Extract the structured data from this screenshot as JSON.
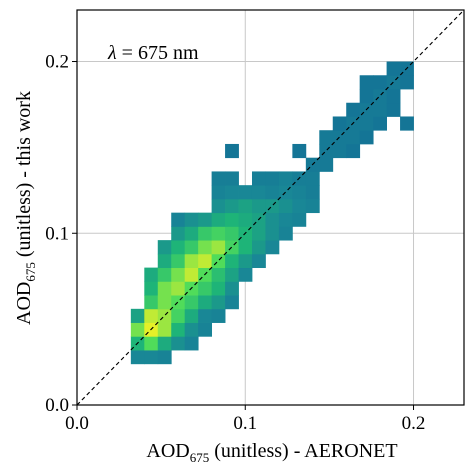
{
  "chart_data": {
    "type": "heatmap",
    "title": "",
    "annotation": {
      "symbol": "λ",
      "text": " = 675 nm"
    },
    "xlabel": {
      "prefix": "AOD",
      "sub": "675",
      "suffix": " (unitless) - AERONET"
    },
    "ylabel": {
      "prefix": "AOD",
      "sub": "675",
      "suffix": " (unitless) - this work"
    },
    "xlim": [
      0,
      0.23
    ],
    "ylim": [
      0,
      0.23
    ],
    "xticks": [
      0,
      0.1,
      0.2
    ],
    "yticks": [
      0,
      0.1,
      0.2
    ],
    "xtick_labels": [
      "0.0",
      "0.1",
      "0.2"
    ],
    "ytick_labels": [
      "0.0",
      "0.1",
      "0.2"
    ],
    "grid": true,
    "reference_line": "1:1 dashed",
    "colormap": "viridis-like (blue-green to yellow)",
    "bin_width": 0.008,
    "cells": [
      [
        0.032,
        0.024,
        0.35
      ],
      [
        0.04,
        0.024,
        0.35
      ],
      [
        0.048,
        0.024,
        0.3
      ],
      [
        0.032,
        0.032,
        0.6
      ],
      [
        0.04,
        0.032,
        0.8
      ],
      [
        0.048,
        0.032,
        0.55
      ],
      [
        0.056,
        0.032,
        0.4
      ],
      [
        0.064,
        0.032,
        0.3
      ],
      [
        0.032,
        0.04,
        0.85
      ],
      [
        0.04,
        0.04,
        1.0
      ],
      [
        0.048,
        0.04,
        0.9
      ],
      [
        0.056,
        0.04,
        0.6
      ],
      [
        0.064,
        0.04,
        0.4
      ],
      [
        0.072,
        0.04,
        0.3
      ],
      [
        0.032,
        0.048,
        0.5
      ],
      [
        0.04,
        0.048,
        0.95
      ],
      [
        0.048,
        0.048,
        0.9
      ],
      [
        0.056,
        0.048,
        0.75
      ],
      [
        0.064,
        0.048,
        0.55
      ],
      [
        0.072,
        0.048,
        0.35
      ],
      [
        0.08,
        0.048,
        0.3
      ],
      [
        0.04,
        0.056,
        0.7
      ],
      [
        0.048,
        0.056,
        0.85
      ],
      [
        0.056,
        0.056,
        0.8
      ],
      [
        0.064,
        0.056,
        0.7
      ],
      [
        0.072,
        0.056,
        0.55
      ],
      [
        0.08,
        0.056,
        0.45
      ],
      [
        0.088,
        0.056,
        0.3
      ],
      [
        0.04,
        0.064,
        0.6
      ],
      [
        0.048,
        0.064,
        0.85
      ],
      [
        0.056,
        0.064,
        0.9
      ],
      [
        0.064,
        0.064,
        0.8
      ],
      [
        0.072,
        0.064,
        0.7
      ],
      [
        0.08,
        0.064,
        0.6
      ],
      [
        0.088,
        0.064,
        0.4
      ],
      [
        0.04,
        0.072,
        0.55
      ],
      [
        0.048,
        0.072,
        0.7
      ],
      [
        0.056,
        0.072,
        0.85
      ],
      [
        0.064,
        0.072,
        0.95
      ],
      [
        0.072,
        0.072,
        0.8
      ],
      [
        0.08,
        0.072,
        0.65
      ],
      [
        0.088,
        0.072,
        0.5
      ],
      [
        0.096,
        0.072,
        0.35
      ],
      [
        0.048,
        0.08,
        0.55
      ],
      [
        0.056,
        0.08,
        0.7
      ],
      [
        0.064,
        0.08,
        0.9
      ],
      [
        0.072,
        0.08,
        0.95
      ],
      [
        0.08,
        0.08,
        0.8
      ],
      [
        0.088,
        0.08,
        0.6
      ],
      [
        0.096,
        0.08,
        0.45
      ],
      [
        0.104,
        0.08,
        0.35
      ],
      [
        0.048,
        0.088,
        0.45
      ],
      [
        0.056,
        0.088,
        0.6
      ],
      [
        0.064,
        0.088,
        0.7
      ],
      [
        0.072,
        0.088,
        0.85
      ],
      [
        0.08,
        0.088,
        0.9
      ],
      [
        0.088,
        0.088,
        0.75
      ],
      [
        0.096,
        0.088,
        0.6
      ],
      [
        0.104,
        0.088,
        0.45
      ],
      [
        0.112,
        0.088,
        0.35
      ],
      [
        0.056,
        0.096,
        0.45
      ],
      [
        0.064,
        0.096,
        0.55
      ],
      [
        0.072,
        0.096,
        0.7
      ],
      [
        0.08,
        0.096,
        0.75
      ],
      [
        0.088,
        0.096,
        0.7
      ],
      [
        0.096,
        0.096,
        0.6
      ],
      [
        0.104,
        0.096,
        0.5
      ],
      [
        0.112,
        0.096,
        0.4
      ],
      [
        0.12,
        0.096,
        0.3
      ],
      [
        0.056,
        0.104,
        0.3
      ],
      [
        0.064,
        0.104,
        0.4
      ],
      [
        0.072,
        0.104,
        0.45
      ],
      [
        0.08,
        0.104,
        0.55
      ],
      [
        0.088,
        0.104,
        0.6
      ],
      [
        0.096,
        0.104,
        0.55
      ],
      [
        0.104,
        0.104,
        0.5
      ],
      [
        0.112,
        0.104,
        0.4
      ],
      [
        0.12,
        0.104,
        0.35
      ],
      [
        0.128,
        0.104,
        0.3
      ],
      [
        0.08,
        0.112,
        0.4
      ],
      [
        0.088,
        0.112,
        0.45
      ],
      [
        0.096,
        0.112,
        0.5
      ],
      [
        0.104,
        0.112,
        0.45
      ],
      [
        0.112,
        0.112,
        0.45
      ],
      [
        0.12,
        0.112,
        0.4
      ],
      [
        0.128,
        0.112,
        0.35
      ],
      [
        0.136,
        0.112,
        0.3
      ],
      [
        0.08,
        0.12,
        0.3
      ],
      [
        0.088,
        0.12,
        0.35
      ],
      [
        0.096,
        0.12,
        0.35
      ],
      [
        0.104,
        0.12,
        0.35
      ],
      [
        0.112,
        0.12,
        0.3
      ],
      [
        0.12,
        0.12,
        0.35
      ],
      [
        0.128,
        0.12,
        0.3
      ],
      [
        0.136,
        0.12,
        0.25
      ],
      [
        0.08,
        0.128,
        0.25
      ],
      [
        0.088,
        0.128,
        0.25
      ],
      [
        0.104,
        0.128,
        0.25
      ],
      [
        0.112,
        0.128,
        0.25
      ],
      [
        0.12,
        0.128,
        0.3
      ],
      [
        0.128,
        0.128,
        0.25
      ],
      [
        0.136,
        0.128,
        0.25
      ],
      [
        0.136,
        0.136,
        0.2
      ],
      [
        0.144,
        0.136,
        0.2
      ],
      [
        0.088,
        0.144,
        0.15
      ],
      [
        0.128,
        0.144,
        0.15
      ],
      [
        0.144,
        0.144,
        0.2
      ],
      [
        0.152,
        0.144,
        0.2
      ],
      [
        0.16,
        0.144,
        0.15
      ],
      [
        0.144,
        0.152,
        0.2
      ],
      [
        0.152,
        0.152,
        0.2
      ],
      [
        0.16,
        0.152,
        0.2
      ],
      [
        0.168,
        0.152,
        0.15
      ],
      [
        0.152,
        0.16,
        0.15
      ],
      [
        0.16,
        0.16,
        0.2
      ],
      [
        0.168,
        0.16,
        0.2
      ],
      [
        0.176,
        0.16,
        0.15
      ],
      [
        0.192,
        0.16,
        0.15
      ],
      [
        0.16,
        0.168,
        0.15
      ],
      [
        0.168,
        0.168,
        0.2
      ],
      [
        0.176,
        0.168,
        0.2
      ],
      [
        0.184,
        0.168,
        0.15
      ],
      [
        0.168,
        0.176,
        0.15
      ],
      [
        0.176,
        0.176,
        0.2
      ],
      [
        0.184,
        0.176,
        0.15
      ],
      [
        0.168,
        0.184,
        0.15
      ],
      [
        0.176,
        0.184,
        0.15
      ],
      [
        0.184,
        0.184,
        0.2
      ],
      [
        0.192,
        0.184,
        0.15
      ],
      [
        0.184,
        0.192,
        0.15
      ],
      [
        0.192,
        0.192,
        0.15
      ]
    ]
  }
}
